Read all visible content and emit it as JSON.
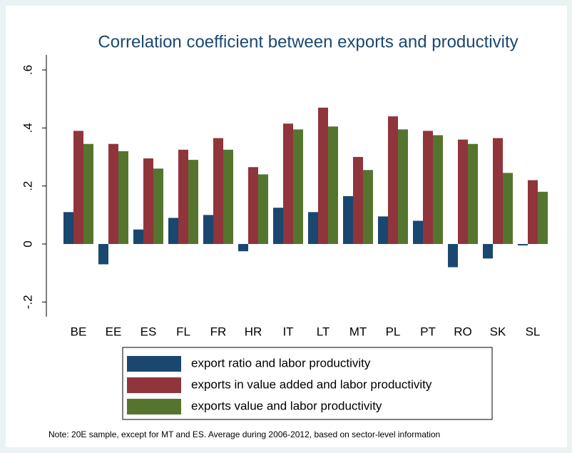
{
  "chart_data": {
    "type": "bar",
    "title": "Correlation coefficient between exports and productivity",
    "note": "Note: 20E sample, except for MT and ES. Average during 2006-2012, based on sector-level information",
    "categories": [
      "BE",
      "EE",
      "ES",
      "FL",
      "FR",
      "HR",
      "IT",
      "LT",
      "MT",
      "PL",
      "PT",
      "RO",
      "SK",
      "SL"
    ],
    "series": [
      {
        "name": "export ratio and labor productivity",
        "color": "#1a476f",
        "values": [
          0.11,
          -0.07,
          0.05,
          0.09,
          0.1,
          -0.025,
          0.125,
          0.11,
          0.165,
          0.095,
          0.08,
          -0.08,
          -0.05,
          -0.005
        ]
      },
      {
        "name": "exports in value added and labor productivity",
        "color": "#90353b",
        "values": [
          0.39,
          0.345,
          0.295,
          0.325,
          0.365,
          0.265,
          0.415,
          0.47,
          0.3,
          0.44,
          0.39,
          0.36,
          0.365,
          0.22
        ]
      },
      {
        "name": "exports value and labor productivity",
        "color": "#55752f",
        "values": [
          0.345,
          0.32,
          0.26,
          0.29,
          0.325,
          0.24,
          0.395,
          0.405,
          0.255,
          0.395,
          0.375,
          0.345,
          0.245,
          0.18
        ]
      }
    ],
    "ylim": [
      -0.25,
      0.65
    ],
    "yticks": [
      {
        "value": -0.2,
        "label": "-.2"
      },
      0,
      {
        "value": 0.2,
        "label": ".2"
      },
      {
        "value": 0.4,
        "label": ".4"
      },
      {
        "value": 0.6,
        "label": ".6"
      }
    ],
    "grid": false
  }
}
